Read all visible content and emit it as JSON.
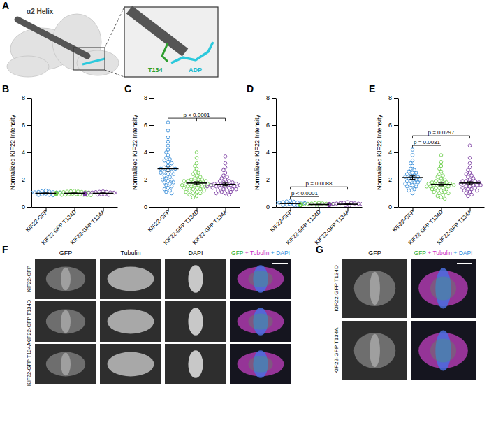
{
  "chart_data": [
    {
      "type": "strip",
      "panel": "B",
      "y_label": "Normalized KIF22 Intensity",
      "categories": [
        "KIF22-GFP",
        "KIF22-GFP T134D",
        "KIF22-GFP T134A"
      ],
      "colors": [
        "#3b8ed8",
        "#6fcf4f",
        "#7d3fa3"
      ],
      "ylim": [
        0,
        8
      ],
      "yticks": [
        0,
        2,
        4,
        6,
        8
      ],
      "points": [
        [
          1.0,
          0.95,
          1.05,
          1.1,
          0.9,
          0.98,
          1.02,
          1.15,
          0.88,
          1.0,
          1.07,
          0.93,
          0.97,
          1.03,
          1.2,
          0.85,
          1.0,
          0.96,
          1.04,
          1.08,
          0.92,
          1.01,
          0.99,
          1.12,
          0.9,
          1.05,
          0.94,
          1.0,
          1.06,
          0.87
        ],
        [
          1.0,
          0.93,
          1.06,
          1.12,
          0.88,
          0.97,
          1.03,
          1.18,
          0.9,
          1.01,
          1.08,
          0.95,
          0.98,
          1.02,
          1.15,
          0.86,
          1.0,
          0.94,
          1.05,
          1.1,
          0.91,
          1.02,
          0.99,
          1.09,
          0.89,
          1.04,
          0.96,
          1.0,
          1.07,
          0.92,
          1.13,
          0.87
        ],
        [
          1.0,
          0.96,
          1.04,
          1.09,
          0.91,
          0.98,
          1.02,
          1.14,
          0.89,
          1.0,
          1.06,
          0.94,
          0.97,
          1.03,
          1.11,
          0.88,
          1.01,
          0.95,
          1.05,
          1.07,
          0.92,
          1.0,
          0.99,
          1.1,
          0.9,
          1.03
        ]
      ],
      "means": [
        1.0,
        1.0,
        1.0
      ],
      "errors": [
        0.03,
        0.03,
        0.03
      ],
      "comparisons": []
    },
    {
      "type": "strip",
      "panel": "C",
      "y_label": "Normalized KIF22 Intensity",
      "categories": [
        "KIF22-GFP",
        "KIF22-GFP T134D",
        "KIF22-GFP T134A"
      ],
      "colors": [
        "#3b8ed8",
        "#6fcf4f",
        "#7d3fa3"
      ],
      "ylim": [
        0,
        8
      ],
      "yticks": [
        0,
        2,
        4,
        6,
        8
      ],
      "points": [
        [
          6.2,
          5.6,
          5.1,
          4.8,
          4.5,
          4.2,
          4.0,
          3.8,
          3.6,
          3.5,
          3.3,
          3.2,
          3.0,
          2.9,
          2.8,
          2.8,
          2.7,
          2.6,
          2.5,
          2.4,
          2.4,
          2.3,
          2.2,
          2.1,
          2.0,
          2.0,
          1.9,
          1.8,
          1.7,
          1.6,
          1.5,
          1.4,
          1.3,
          1.2,
          1.1,
          1.0,
          2.6,
          2.9,
          3.4,
          1.8
        ],
        [
          4.0,
          3.6,
          3.2,
          3.0,
          2.8,
          2.6,
          2.5,
          2.4,
          2.3,
          2.2,
          2.1,
          2.0,
          2.0,
          1.9,
          1.9,
          1.8,
          1.8,
          1.8,
          1.7,
          1.7,
          1.7,
          1.6,
          1.6,
          1.6,
          1.5,
          1.5,
          1.5,
          1.4,
          1.4,
          1.4,
          1.3,
          1.3,
          1.2,
          1.2,
          1.1,
          1.1,
          1.0,
          1.0,
          0.9,
          0.8,
          0.7,
          1.6,
          1.7,
          1.9,
          2.0
        ],
        [
          3.7,
          3.2,
          2.9,
          2.7,
          2.5,
          2.3,
          2.2,
          2.1,
          2.0,
          1.9,
          1.9,
          1.8,
          1.8,
          1.7,
          1.7,
          1.7,
          1.6,
          1.6,
          1.6,
          1.5,
          1.5,
          1.5,
          1.4,
          1.4,
          1.4,
          1.3,
          1.3,
          1.3,
          1.2,
          1.2,
          1.1,
          1.1,
          1.0,
          1.0,
          0.9,
          1.6,
          1.5,
          1.7
        ]
      ],
      "means": [
        2.8,
        1.75,
        1.65
      ],
      "errors": [
        0.18,
        0.1,
        0.1
      ],
      "comparisons": [
        {
          "groups": [
            "KIF22-GFP",
            "KIF22-GFP T134D",
            "KIF22-GFP T134A"
          ],
          "text": "p < 0.0001"
        }
      ]
    },
    {
      "type": "strip",
      "panel": "D",
      "y_label": "Normalized KIF22 Intensity",
      "categories": [
        "KIF22-GFP",
        "KIF22-GFP T134D",
        "KIF22-GFP T134A"
      ],
      "colors": [
        "#3b8ed8",
        "#6fcf4f",
        "#7d3fa3"
      ],
      "ylim": [
        0,
        8
      ],
      "yticks": [
        0,
        2,
        4,
        6,
        8
      ],
      "points": [
        [
          0.45,
          0.4,
          0.38,
          0.35,
          0.33,
          0.31,
          0.3,
          0.29,
          0.28,
          0.27,
          0.26,
          0.26,
          0.25,
          0.25,
          0.24,
          0.24,
          0.23,
          0.23,
          0.22,
          0.22,
          0.21,
          0.21,
          0.2,
          0.2,
          0.19,
          0.18,
          0.17,
          0.16,
          0.15,
          0.14,
          0.12,
          0.1
        ],
        [
          0.3,
          0.28,
          0.26,
          0.25,
          0.24,
          0.23,
          0.22,
          0.21,
          0.2,
          0.2,
          0.19,
          0.19,
          0.18,
          0.18,
          0.18,
          0.17,
          0.17,
          0.17,
          0.16,
          0.16,
          0.15,
          0.15,
          0.14,
          0.14,
          0.13,
          0.12,
          0.11,
          0.1,
          0.09,
          0.08
        ],
        [
          0.35,
          0.32,
          0.3,
          0.28,
          0.26,
          0.25,
          0.24,
          0.23,
          0.22,
          0.22,
          0.21,
          0.21,
          0.2,
          0.2,
          0.2,
          0.19,
          0.19,
          0.18,
          0.18,
          0.17,
          0.17,
          0.16,
          0.15,
          0.14,
          0.13,
          0.12,
          0.1
        ]
      ],
      "means": [
        0.25,
        0.18,
        0.2
      ],
      "errors": [
        0.02,
        0.01,
        0.01
      ],
      "comparisons": [
        {
          "groups": [
            "KIF22-GFP",
            "KIF22-GFP T134D"
          ],
          "text": "p < 0.0001"
        },
        {
          "groups": [
            "KIF22-GFP",
            "KIF22-GFP T134A"
          ],
          "text": "p = 0.0088"
        }
      ]
    },
    {
      "type": "strip",
      "panel": "E",
      "y_label": "Normalized KIF22 Intensity",
      "categories": [
        "KIF22-GFP",
        "KIF22-GFP T134D",
        "KIF22-GFP T134A"
      ],
      "colors": [
        "#3b8ed8",
        "#6fcf4f",
        "#7d3fa3"
      ],
      "ylim": [
        0,
        8
      ],
      "yticks": [
        0,
        2,
        4,
        6,
        8
      ],
      "points": [
        [
          4.2,
          3.8,
          3.4,
          3.2,
          3.0,
          2.8,
          2.7,
          2.6,
          2.5,
          2.4,
          2.3,
          2.2,
          2.2,
          2.1,
          2.1,
          2.0,
          2.0,
          1.9,
          1.9,
          1.8,
          1.8,
          1.7,
          1.7,
          1.6,
          1.5,
          1.5,
          1.4,
          1.3,
          1.2,
          1.0,
          2.3,
          2.5
        ],
        [
          3.8,
          3.3,
          3.0,
          2.8,
          2.6,
          2.4,
          2.3,
          2.2,
          2.1,
          2.0,
          1.9,
          1.9,
          1.8,
          1.8,
          1.7,
          1.7,
          1.6,
          1.6,
          1.6,
          1.5,
          1.5,
          1.5,
          1.4,
          1.4,
          1.4,
          1.3,
          1.3,
          1.2,
          1.2,
          1.1,
          1.1,
          1.0,
          1.0,
          0.9,
          0.8,
          0.7,
          0.6,
          1.6,
          1.7,
          1.8
        ],
        [
          4.5,
          3.6,
          3.2,
          2.9,
          2.7,
          2.5,
          2.4,
          2.3,
          2.2,
          2.1,
          2.0,
          1.9,
          1.9,
          1.8,
          1.8,
          1.7,
          1.7,
          1.7,
          1.6,
          1.6,
          1.5,
          1.5,
          1.4,
          1.4,
          1.3,
          1.3,
          1.2,
          1.2,
          1.1,
          1.0,
          0.9,
          0.8,
          1.6,
          1.9
        ]
      ],
      "means": [
        2.15,
        1.65,
        1.75
      ],
      "errors": [
        0.12,
        0.1,
        0.1
      ],
      "comparisons": [
        {
          "groups": [
            "KIF22-GFP",
            "KIF22-GFP T134D"
          ],
          "text": "p = 0.0031"
        },
        {
          "groups": [
            "KIF22-GFP",
            "KIF22-GFP T134A"
          ],
          "text": "p = 0.0297"
        }
      ]
    }
  ],
  "panel_a": {
    "label": "A",
    "helix_label": "α2 Helix",
    "residue_label": "T134",
    "ligand_label": "ADP"
  },
  "panel_f": {
    "label": "F",
    "columns": [
      "GFP",
      "Tubulin",
      "DAPI"
    ],
    "merge": [
      "GFP",
      " + Tubulin",
      " + DAPI"
    ],
    "rows": [
      "KIF22-GFP",
      "KIF22-GFP T134D",
      "KIF22-GFP T134A"
    ]
  },
  "panel_g": {
    "label": "G",
    "columns": [
      "GFP"
    ],
    "merge": [
      "GFP",
      " + Tubulin",
      " + DAPI"
    ],
    "rows": [
      "KIF22-GFP T134D",
      "KIF22-GFP T134A"
    ]
  }
}
